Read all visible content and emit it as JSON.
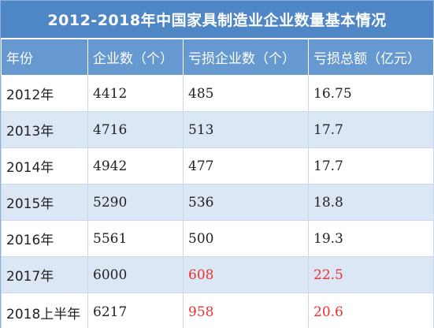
{
  "chart_data": {
    "type": "table",
    "title": "2012-2018年中国家具制造业企业数量基本情况",
    "columns": [
      "年份",
      "企业数（个）",
      "亏损企业数（个）",
      "亏损总额（亿元）"
    ],
    "rows": [
      {
        "year": "2012年",
        "enterprises": "4412",
        "loss_enterprises": "485",
        "loss_total": "16.75"
      },
      {
        "year": "2013年",
        "enterprises": "4716",
        "loss_enterprises": "513",
        "loss_total": "17.7"
      },
      {
        "year": "2014年",
        "enterprises": "4942",
        "loss_enterprises": "477",
        "loss_total": "17.7"
      },
      {
        "year": "2015年",
        "enterprises": "5290",
        "loss_enterprises": "536",
        "loss_total": "18.8"
      },
      {
        "year": "2016年",
        "enterprises": "5561",
        "loss_enterprises": "500",
        "loss_total": "19.3"
      },
      {
        "year": "2017年",
        "enterprises": "6000",
        "loss_enterprises": "608",
        "loss_total": "22.5"
      },
      {
        "year": "2018上半年",
        "enterprises": "6217",
        "loss_enterprises": "958",
        "loss_total": "20.6"
      }
    ],
    "highlighted_rows": [
      5,
      6
    ],
    "colors": {
      "title_bg": "#4f86c6",
      "header_bg": "#6699cf",
      "stripe_bg": "#dce7f5",
      "highlight_text": "#e8322e"
    }
  }
}
